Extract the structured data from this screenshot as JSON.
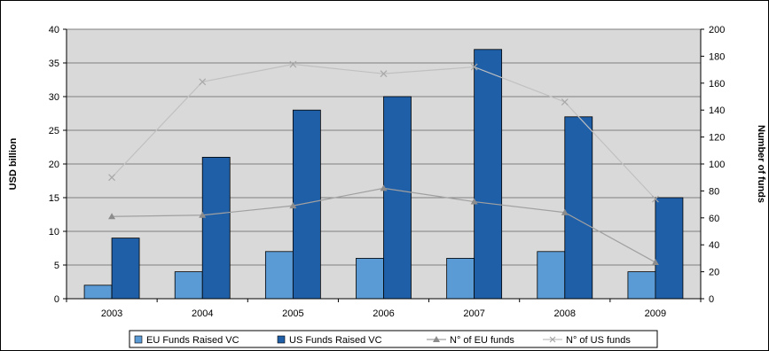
{
  "chart_data": {
    "type": "bar",
    "categories": [
      "2003",
      "2004",
      "2005",
      "2006",
      "2007",
      "2008",
      "2009"
    ],
    "series": [
      {
        "name": "EU Funds Raised VC",
        "kind": "bar",
        "axis": "left",
        "color": "#5b9bd5",
        "values": [
          2,
          4,
          7,
          6,
          6,
          7,
          4
        ]
      },
      {
        "name": "US Funds Raised VC",
        "kind": "bar",
        "axis": "left",
        "color": "#1f5fa8",
        "values": [
          9,
          21,
          28,
          30,
          37,
          27,
          15
        ]
      },
      {
        "name": "N° of EU funds",
        "kind": "line",
        "axis": "right",
        "color": "#a0a0a0",
        "marker": "triangle",
        "values": [
          61,
          62,
          69,
          82,
          72,
          64,
          27
        ]
      },
      {
        "name": "N° of US funds",
        "kind": "line",
        "axis": "right",
        "color": "#c0c0c0",
        "marker": "x",
        "values": [
          90,
          161,
          174,
          167,
          172,
          146,
          74
        ]
      }
    ],
    "ylabel": "USD billion",
    "y2label": "Number of funds",
    "ylim": [
      0,
      40
    ],
    "y2lim": [
      0,
      200
    ],
    "yticks": [
      "0",
      "5",
      "10",
      "15",
      "20",
      "25",
      "30",
      "35",
      "40"
    ],
    "y2ticks": [
      "0",
      "20",
      "40",
      "60",
      "80",
      "100",
      "120",
      "140",
      "160",
      "180",
      "200"
    ],
    "plot_background": "#d9d9d9",
    "grid": true,
    "legend_position": "bottom"
  }
}
